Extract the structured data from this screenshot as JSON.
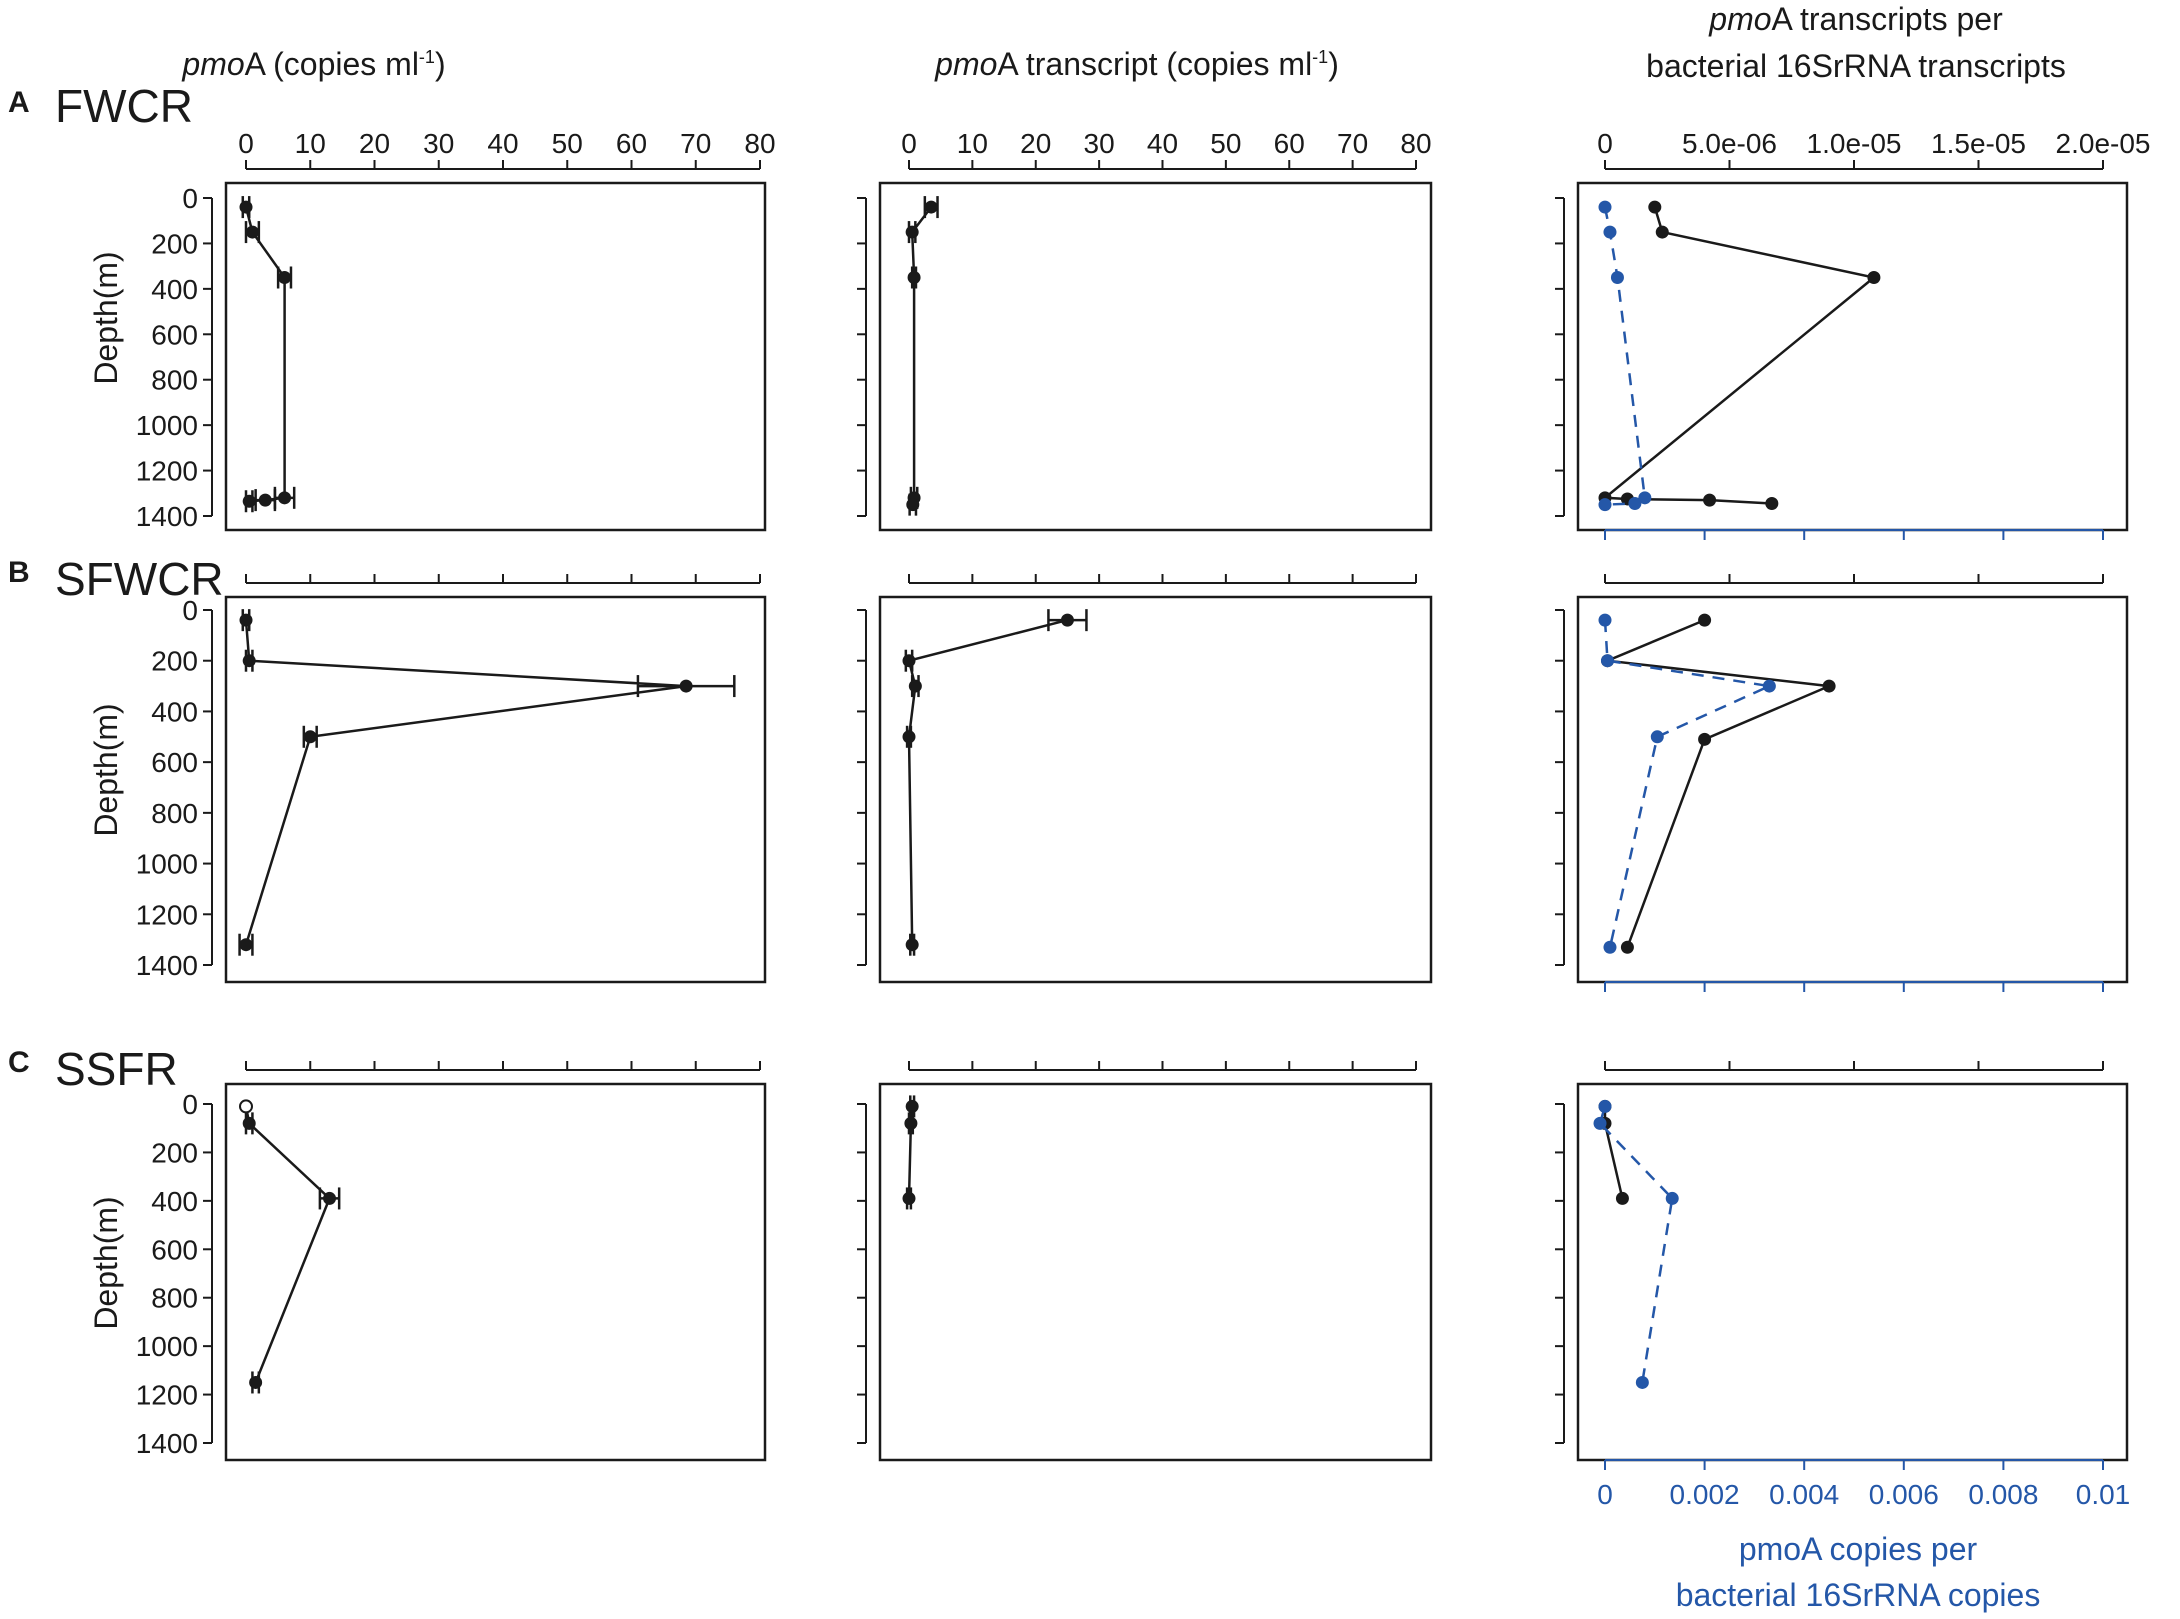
{
  "panel_labels": [
    "A",
    "B",
    "C"
  ],
  "site_labels": [
    "FWCR",
    "SFWCR",
    "SSFR"
  ],
  "axis_titles": {
    "col1": {
      "italic": "pmo",
      "rest": "A (copies ml",
      "sup": "-1",
      "end": ")"
    },
    "col2": {
      "italic": "pmo",
      "rest": "A transcript (copies ml",
      "sup": "-1",
      "end": ")"
    },
    "col3_line1": {
      "italic": "pmo",
      "rest": "A transcripts per"
    },
    "col3_line2": "bacterial 16SrRNA transcripts",
    "bottom_line1": "pmoA copies per",
    "bottom_line2": "bacterial 16SrRNA copies",
    "ylabel": "Depth(m)"
  },
  "colors": {
    "black_series": "#1a1a1a",
    "blue_series": "#2457a8",
    "axis": "#1a1a1a"
  },
  "chart_data": [
    {
      "panel": "A",
      "site": "FWCR",
      "column": 1,
      "type": "line",
      "xlabel": "pmoA (copies ml-1)",
      "ylabel": "Depth(m)",
      "xlim": [
        0,
        80
      ],
      "ylim": [
        0,
        1400
      ],
      "y_reversed": true,
      "xticks": [
        0,
        10,
        20,
        30,
        40,
        50,
        60,
        70,
        80
      ],
      "yticks": [
        0,
        200,
        400,
        600,
        800,
        1000,
        1200,
        1400
      ],
      "series": [
        {
          "points": [
            {
              "x": 0,
              "y": 40,
              "err": 0.5
            },
            {
              "x": 1,
              "y": 150,
              "err": 1
            },
            {
              "x": 6,
              "y": 350,
              "err": 1
            },
            {
              "x": 6,
              "y": 1320,
              "err": 1.5
            },
            {
              "x": 3,
              "y": 1330,
              "err": 1.5
            },
            {
              "x": 0.5,
              "y": 1335,
              "err": 0.5
            }
          ]
        }
      ]
    },
    {
      "panel": "A",
      "site": "FWCR",
      "column": 2,
      "type": "line",
      "xlabel": "pmoA transcript (copies ml-1)",
      "ylabel": "Depth(m)",
      "xlim": [
        0,
        80
      ],
      "ylim": [
        0,
        1400
      ],
      "y_reversed": true,
      "xticks": [
        0,
        10,
        20,
        30,
        40,
        50,
        60,
        70,
        80
      ],
      "yticks": [
        0,
        200,
        400,
        600,
        800,
        1000,
        1200,
        1400
      ],
      "series": [
        {
          "points": [
            {
              "x": 3.5,
              "y": 40,
              "err": 1
            },
            {
              "x": 0.5,
              "y": 150,
              "err": 0.5
            },
            {
              "x": 0.8,
              "y": 350,
              "err": 0.3
            },
            {
              "x": 0.8,
              "y": 1320,
              "err": 0.5
            },
            {
              "x": 0.6,
              "y": 1350,
              "err": 0.5
            }
          ]
        }
      ]
    },
    {
      "panel": "A",
      "site": "FWCR",
      "column": 3,
      "type": "line",
      "xlabel": "pmoA transcripts per bacterial 16SrRNA transcripts",
      "x2label": "pmoA copies per bacterial 16SrRNA copies",
      "xlim": [
        0,
        2e-05
      ],
      "x2lim": [
        0,
        0.01
      ],
      "xticks": [
        "0",
        "5.0e-06",
        "1.0e-05",
        "1.5e-05",
        "2.0e-05"
      ],
      "x2ticks": [
        "0",
        "0.002",
        "0.004",
        "0.006",
        "0.008",
        "0.01"
      ],
      "ylim": [
        0,
        1400
      ],
      "y_reversed": true,
      "series": [
        {
          "axis": "top",
          "style": "solid",
          "points": [
            {
              "x": 2e-06,
              "y": 40
            },
            {
              "x": 2.3e-06,
              "y": 150
            },
            {
              "x": 1.08e-05,
              "y": 350
            },
            {
              "x": 0,
              "y": 1320
            },
            {
              "x": 9e-07,
              "y": 1325
            },
            {
              "x": 4.2e-06,
              "y": 1330
            },
            {
              "x": 6.7e-06,
              "y": 1345
            }
          ]
        },
        {
          "axis": "bottom",
          "style": "dashed",
          "points": [
            {
              "x": 0.0,
              "y": 40
            },
            {
              "x": 0.0001,
              "y": 150
            },
            {
              "x": 0.00025,
              "y": 350
            },
            {
              "x": 0.0008,
              "y": 1320
            },
            {
              "x": 0.0006,
              "y": 1345
            },
            {
              "x": 0.0,
              "y": 1350
            }
          ]
        }
      ]
    },
    {
      "panel": "B",
      "site": "SFWCR",
      "column": 1,
      "type": "line",
      "xlabel": "pmoA (copies ml-1)",
      "ylabel": "Depth(m)",
      "xlim": [
        0,
        80
      ],
      "ylim": [
        0,
        1400
      ],
      "y_reversed": true,
      "xticks": [
        0,
        10,
        20,
        30,
        40,
        50,
        60,
        70,
        80
      ],
      "yticks": [
        0,
        200,
        400,
        600,
        800,
        1000,
        1200,
        1400
      ],
      "series": [
        {
          "points": [
            {
              "x": 0,
              "y": 40,
              "err": 0.5
            },
            {
              "x": 0.5,
              "y": 200,
              "err": 0.5
            },
            {
              "x": 68.5,
              "y": 300,
              "err": 7.5
            },
            {
              "x": 10,
              "y": 500,
              "err": 1
            },
            {
              "x": 0,
              "y": 1320,
              "err": 1
            }
          ]
        }
      ]
    },
    {
      "panel": "B",
      "site": "SFWCR",
      "column": 2,
      "type": "line",
      "xlabel": "pmoA transcript (copies ml-1)",
      "ylabel": "Depth(m)",
      "xlim": [
        0,
        80
      ],
      "ylim": [
        0,
        1400
      ],
      "y_reversed": true,
      "xticks": [
        0,
        10,
        20,
        30,
        40,
        50,
        60,
        70,
        80
      ],
      "yticks": [
        0,
        200,
        400,
        600,
        800,
        1000,
        1200,
        1400
      ],
      "series": [
        {
          "points": [
            {
              "x": 25,
              "y": 40,
              "err": 3
            },
            {
              "x": 0,
              "y": 200,
              "err": 0.5
            },
            {
              "x": 1,
              "y": 300,
              "err": 0.5
            },
            {
              "x": 0,
              "y": 500,
              "err": 0.3
            },
            {
              "x": 0.5,
              "y": 1320,
              "err": 0.3
            }
          ]
        }
      ]
    },
    {
      "panel": "B",
      "site": "SFWCR",
      "column": 3,
      "type": "line",
      "xlim": [
        0,
        2e-05
      ],
      "x2lim": [
        0,
        0.01
      ],
      "ylim": [
        0,
        1400
      ],
      "y_reversed": true,
      "series": [
        {
          "axis": "top",
          "style": "solid",
          "points": [
            {
              "x": 4e-06,
              "y": 40
            },
            {
              "x": 1e-07,
              "y": 200
            },
            {
              "x": 9e-06,
              "y": 300
            },
            {
              "x": 4e-06,
              "y": 510
            },
            {
              "x": 9e-07,
              "y": 1330
            }
          ]
        },
        {
          "axis": "bottom",
          "style": "dashed",
          "points": [
            {
              "x": 0.0,
              "y": 40
            },
            {
              "x": 5e-05,
              "y": 200
            },
            {
              "x": 0.0033,
              "y": 300
            },
            {
              "x": 0.00105,
              "y": 500
            },
            {
              "x": 0.0001,
              "y": 1330
            }
          ]
        }
      ]
    },
    {
      "panel": "C",
      "site": "SSFR",
      "column": 1,
      "type": "line",
      "xlabel": "pmoA (copies ml-1)",
      "ylabel": "Depth(m)",
      "xlim": [
        0,
        80
      ],
      "ylim": [
        0,
        1400
      ],
      "y_reversed": true,
      "xticks": [
        0,
        10,
        20,
        30,
        40,
        50,
        60,
        70,
        80
      ],
      "yticks": [
        0,
        200,
        400,
        600,
        800,
        1000,
        1200,
        1400
      ],
      "series": [
        {
          "points": [
            {
              "x": 0,
              "y": 10,
              "err": 0,
              "open": true
            },
            {
              "x": 0.5,
              "y": 80,
              "err": 0.5
            },
            {
              "x": 13,
              "y": 390,
              "err": 1.5
            },
            {
              "x": 1.5,
              "y": 1150,
              "err": 0.5
            }
          ]
        }
      ]
    },
    {
      "panel": "C",
      "site": "SSFR",
      "column": 2,
      "type": "line",
      "xlabel": "pmoA transcript (copies ml-1)",
      "ylabel": "Depth(m)",
      "xlim": [
        0,
        80
      ],
      "ylim": [
        0,
        1400
      ],
      "y_reversed": true,
      "xticks": [
        0,
        10,
        20,
        30,
        40,
        50,
        60,
        70,
        80
      ],
      "yticks": [
        0,
        200,
        400,
        600,
        800,
        1000,
        1200,
        1400
      ],
      "series": [
        {
          "points": [
            {
              "x": 0.5,
              "y": 10,
              "err": 0.3
            },
            {
              "x": 0.3,
              "y": 80,
              "err": 0.3
            },
            {
              "x": 0,
              "y": 390,
              "err": 0.3
            }
          ]
        }
      ]
    },
    {
      "panel": "C",
      "site": "SSFR",
      "column": 3,
      "type": "line",
      "xlim": [
        0,
        2e-05
      ],
      "x2lim": [
        0,
        0.01
      ],
      "ylim": [
        0,
        1400
      ],
      "y_reversed": true,
      "series": [
        {
          "axis": "top",
          "style": "solid",
          "points": [
            {
              "x": 0,
              "y": 10
            },
            {
              "x": 0,
              "y": 80
            },
            {
              "x": 7e-07,
              "y": 390
            }
          ]
        },
        {
          "axis": "bottom",
          "style": "dashed",
          "points": [
            {
              "x": 0.0,
              "y": 10
            },
            {
              "x": -0.0001,
              "y": 80
            },
            {
              "x": 0.00135,
              "y": 390
            },
            {
              "x": 0.00075,
              "y": 1150
            }
          ]
        }
      ]
    }
  ]
}
